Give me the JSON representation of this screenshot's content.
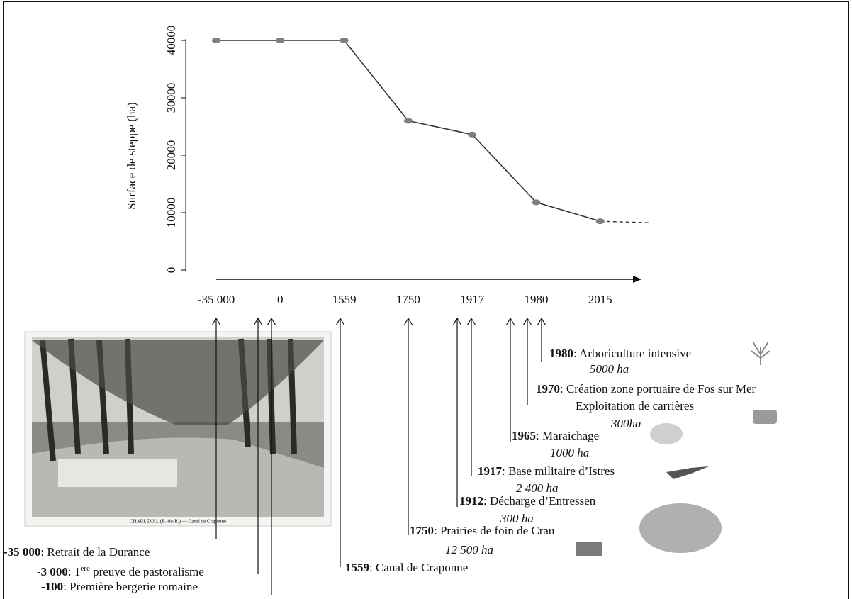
{
  "chart_data": {
    "type": "line",
    "y_label": "Surface de steppe (ha)",
    "categories": [
      "-35 000",
      "0",
      "1559",
      "1750",
      "1917",
      "1980",
      "2015"
    ],
    "values": [
      40000,
      40000,
      40000,
      26000,
      23600,
      11800,
      8500
    ],
    "color": "#333333",
    "marker_color": "#7f7f7f",
    "ylim": [
      0,
      40000
    ],
    "yticks": [
      0,
      10000,
      20000,
      30000,
      40000
    ]
  },
  "photo_caption": "CHARLEVAL (B.-du-R.) — Canal de Craponne",
  "timeline": [
    {
      "year": "-35 000",
      "text": ": Retrait de la Durance"
    },
    {
      "year": "-3 000",
      "text": ": 1",
      "sup": "ère",
      "text_after": " preuve de pastoralisme"
    },
    {
      "year": "-100",
      "text": ": Première bergerie romaine"
    },
    {
      "year": "1559",
      "text": ": Canal de Craponne"
    },
    {
      "year": "1750",
      "text": ": Prairies de foin de Crau",
      "area": "12 500 ha"
    },
    {
      "year": "1912",
      "text": ": Décharge d’Entressen",
      "area": "300 ha"
    },
    {
      "year": "1917",
      "text": ": Base militaire d’Istres",
      "area": "2 400 ha"
    },
    {
      "year": "1965",
      "text": ": Maraichage",
      "area": "1000 ha"
    },
    {
      "year": "1970",
      "text": ":  Création zone portuaire de Fos sur Mer",
      "text2": "Exploitation de carrières",
      "area": "300ha"
    },
    {
      "year": "1980",
      "text": ": Arboriculture intensive",
      "area": "5000 ha"
    }
  ]
}
